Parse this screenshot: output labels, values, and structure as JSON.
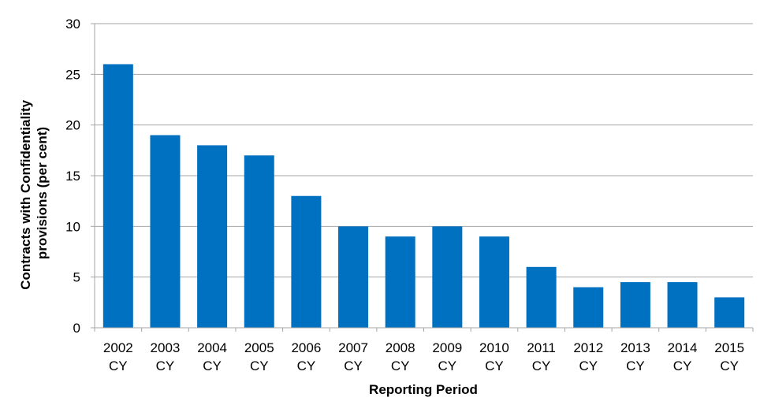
{
  "chart_data": {
    "type": "bar",
    "title": "",
    "xlabel": "Reporting Period",
    "ylabel_lines": [
      "Contracts with Confidentiality",
      "provisions (per cent)"
    ],
    "categories": [
      [
        "2002",
        "CY"
      ],
      [
        "2003",
        "CY"
      ],
      [
        "2004",
        "CY"
      ],
      [
        "2005",
        "CY"
      ],
      [
        "2006",
        "CY"
      ],
      [
        "2007",
        "CY"
      ],
      [
        "2008",
        "CY"
      ],
      [
        "2009",
        "CY"
      ],
      [
        "2010",
        "CY"
      ],
      [
        "2011",
        "CY"
      ],
      [
        "2012",
        "CY"
      ],
      [
        "2013",
        "CY"
      ],
      [
        "2014",
        "CY"
      ],
      [
        "2015",
        "CY"
      ]
    ],
    "values": [
      26,
      19,
      18,
      17,
      13,
      10,
      9,
      10,
      9,
      6,
      4,
      4.5,
      4.5,
      3
    ],
    "ylim": [
      0,
      30
    ],
    "yticks": [
      0,
      5,
      10,
      15,
      20,
      25,
      30
    ],
    "grid": true,
    "legend": "none",
    "colors": {
      "bar": "#0070C0",
      "grid": "#A6A6A6",
      "axis": "#A6A6A6",
      "text": "#000000"
    }
  }
}
